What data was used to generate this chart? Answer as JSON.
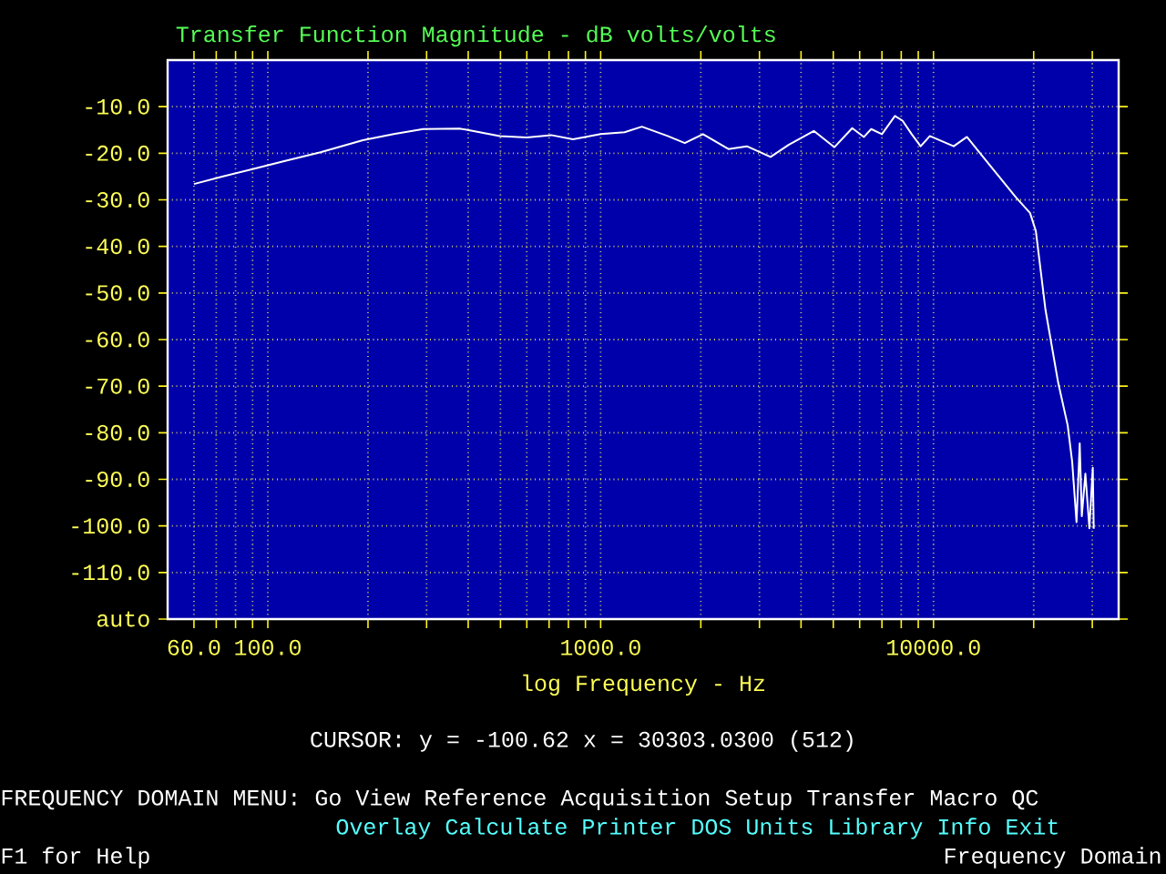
{
  "chart_data": {
    "type": "line",
    "title": "Transfer Function Magnitude - dB volts/volts",
    "xlabel": "log Frequency - Hz",
    "x": [
      60,
      72.9,
      90,
      112,
      144,
      193,
      239,
      293,
      377,
      412,
      498,
      600,
      710,
      826,
      1000,
      1180,
      1330,
      1590,
      1790,
      2030,
      2420,
      2750,
      3240,
      3670,
      4370,
      5040,
      5700,
      6180,
      6500,
      7000,
      7660,
      8070,
      8600,
      9150,
      9750,
      11500,
      12600,
      14200,
      17700,
      19500,
      20300,
      21700,
      23700,
      25300,
      26100,
      26900,
      27500,
      27900,
      28600,
      29400,
      30100,
      30303
    ],
    "series": [
      {
        "color": "#ffffff",
        "values": [
          -26.6,
          -25.0,
          -23.4,
          -21.7,
          -19.8,
          -17.2,
          -15.9,
          -14.8,
          -14.7,
          -15.2,
          -16.3,
          -16.6,
          -16.1,
          -17.0,
          -15.9,
          -15.5,
          -14.3,
          -16.3,
          -17.8,
          -15.9,
          -19.1,
          -18.5,
          -20.8,
          -18.2,
          -15.2,
          -18.7,
          -14.6,
          -16.5,
          -14.8,
          -15.9,
          -12.0,
          -13.0,
          -15.9,
          -18.5,
          -16.3,
          -18.5,
          -16.5,
          -21.1,
          -29.5,
          -32.8,
          -36.7,
          -53.6,
          -69.3,
          -78.4,
          -86.2,
          -99.2,
          -82.3,
          -97.9,
          -88.8,
          -100.5,
          -87.5,
          -100.6
        ]
      }
    ],
    "log": "x",
    "xlim": [
      50,
      36000
    ],
    "ylim": [
      -120,
      0
    ],
    "xticks": [
      {
        "value": 60,
        "label": "60.0"
      },
      {
        "value": 70,
        "label": null
      },
      {
        "value": 80,
        "label": null
      },
      {
        "value": 90,
        "label": null
      },
      {
        "value": 100,
        "label": "100.0"
      },
      {
        "value": 200,
        "label": null
      },
      {
        "value": 300,
        "label": null
      },
      {
        "value": 400,
        "label": null
      },
      {
        "value": 500,
        "label": null
      },
      {
        "value": 600,
        "label": null
      },
      {
        "value": 700,
        "label": null
      },
      {
        "value": 800,
        "label": null
      },
      {
        "value": 900,
        "label": null
      },
      {
        "value": 1000,
        "label": "1000.0"
      },
      {
        "value": 2000,
        "label": null
      },
      {
        "value": 3000,
        "label": null
      },
      {
        "value": 4000,
        "label": null
      },
      {
        "value": 5000,
        "label": null
      },
      {
        "value": 6000,
        "label": null
      },
      {
        "value": 7000,
        "label": null
      },
      {
        "value": 8000,
        "label": null
      },
      {
        "value": 9000,
        "label": null
      },
      {
        "value": 10000,
        "label": "10000.0"
      },
      {
        "value": 20000,
        "label": null
      },
      {
        "value": 30000,
        "label": null
      }
    ],
    "yticks": [
      {
        "value": -10,
        "label": "-10.0"
      },
      {
        "value": -20,
        "label": "-20.0"
      },
      {
        "value": -30,
        "label": "-30.0"
      },
      {
        "value": -40,
        "label": "-40.0"
      },
      {
        "value": -50,
        "label": "-50.0"
      },
      {
        "value": -60,
        "label": "-60.0"
      },
      {
        "value": -70,
        "label": "-70.0"
      },
      {
        "value": -80,
        "label": "-80.0"
      },
      {
        "value": -90,
        "label": "-90.0"
      },
      {
        "value": -100,
        "label": "-100.0"
      },
      {
        "value": -110,
        "label": "-110.0"
      },
      {
        "value": -120,
        "label": "auto"
      }
    ],
    "grid": true,
    "marker": "none",
    "line_style": "solid",
    "annotations": [
      "CURSOR: y = -100.62 x = 30303.0300 (512)",
      "FREQUENCY DOMAIN MENU: Go View Reference Acquisition Setup Transfer Macro QC",
      "Overlay Calculate Printer DOS Units Library Info Exit",
      "F1 for Help",
      "Frequency Domain"
    ]
  }
}
